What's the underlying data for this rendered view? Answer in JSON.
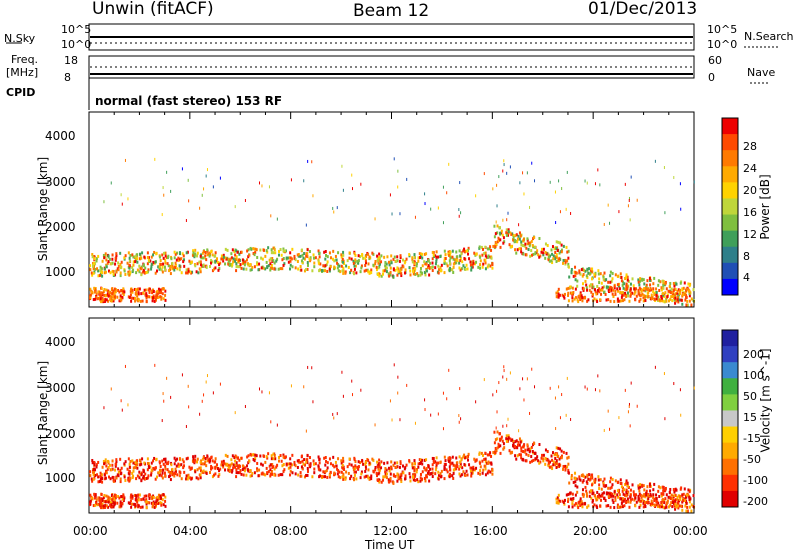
{
  "header": {
    "left": "Unwin (fitACF)",
    "center": "Beam 12",
    "right": "01/Dec/2013"
  },
  "status": {
    "nsky_label": "N.Sky",
    "nsky_ticks": [
      "10^5",
      "10^0"
    ],
    "nsearch_label": "N.Search",
    "nsearch_ticks": [
      "10^5",
      "10^0"
    ],
    "freq_label": "Freq.",
    "freq_unit": "[MHz]",
    "freq_ticks": [
      "18",
      "8"
    ],
    "nave_label": "Nave",
    "nave_ticks": [
      "60",
      "0"
    ],
    "cpid_label": "CPID",
    "cpid_text": "normal (fast stereo) 153 RF"
  },
  "chart_data": [
    {
      "type": "heatmap",
      "title": "",
      "xlabel": "",
      "ylabel": "Slant Range [km]",
      "y_ticks": [
        "1000",
        "2000",
        "3000",
        "4000"
      ],
      "ylim": [
        200,
        4500
      ],
      "xlim": [
        "00:00",
        "24:00"
      ],
      "colorbar": {
        "label": "Power [dB]",
        "ticks": [
          "4",
          "8",
          "12",
          "16",
          "20",
          "24",
          "28"
        ],
        "colors": [
          "#0000ff",
          "#1f4fb5",
          "#2e7f8a",
          "#3f9f5a",
          "#7fbf3f",
          "#bfd63a",
          "#ffd200",
          "#ffaa00",
          "#ff7a00",
          "#ff4a00",
          "#ee0000"
        ]
      },
      "description_series": "radar backscatter power vs time and slant range"
    },
    {
      "type": "heatmap",
      "title": "",
      "xlabel": "Time UT",
      "ylabel": "Slant Range [km]",
      "x_ticks": [
        "00:00",
        "04:00",
        "08:00",
        "12:00",
        "16:00",
        "20:00",
        "00:00"
      ],
      "y_ticks": [
        "1000",
        "2000",
        "3000",
        "4000"
      ],
      "ylim": [
        200,
        4500
      ],
      "xlim": [
        "00:00",
        "24:00"
      ],
      "colorbar": {
        "label": "Velocity [m s^-1]",
        "ticks": [
          "200",
          "100",
          "50",
          "15",
          "-15",
          "-50",
          "-100",
          "-200"
        ],
        "colors": [
          "#2020a0",
          "#3040c0",
          "#3a8ad0",
          "#40b040",
          "#80d040",
          "#c8c8c8",
          "#ffd000",
          "#ffaa00",
          "#ff7000",
          "#ff3000",
          "#e00000"
        ]
      }
    }
  ]
}
